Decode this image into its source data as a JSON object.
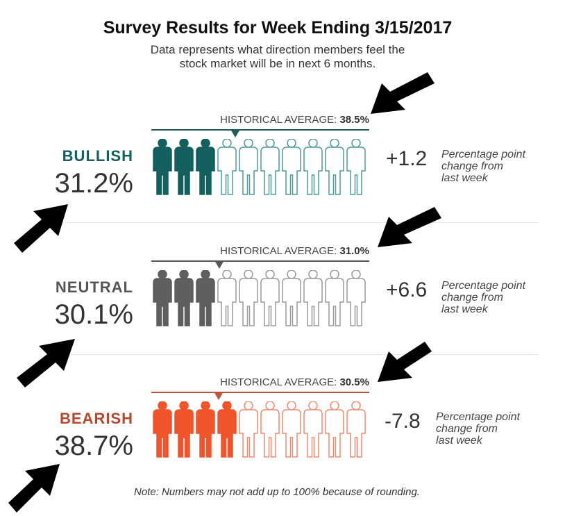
{
  "title": "Survey Results for Week Ending 3/15/2017",
  "subtitle_line1": "Data represents what direction members feel the",
  "subtitle_line2": "stock market will be in next 6 months.",
  "note": "Note: Numbers may not add up to 100% because of rounding.",
  "hist_prefix": "HISTORICAL AVERAGE: ",
  "chart_data": {
    "type": "pictogram",
    "title": "Survey Results for Week Ending 3/15/2017",
    "icons_per_row": 10,
    "categories": [
      {
        "name": "BULLISH",
        "value_label": "31.2%",
        "value": 31.2,
        "filled_icons": 3,
        "historical_average_label": "38.5%",
        "historical_average": 38.5,
        "change_label": "+1.2",
        "change": 1.2,
        "change_text_line1": "Percentage point",
        "change_text_line2": "change from",
        "change_text_line3": "last week",
        "color": "#14605f",
        "outline_color": "#4f9a9b",
        "line_color": "#1f5c5a"
      },
      {
        "name": "NEUTRAL",
        "value_label": "30.1%",
        "value": 30.1,
        "filled_icons": 3,
        "historical_average_label": "31.0%",
        "historical_average": 31.0,
        "change_label": "+6.6",
        "change": 6.6,
        "change_text_line1": "Percentage point",
        "change_text_line2": "change from",
        "change_text_line3": "last week",
        "color": "#5f5f5f",
        "outline_color": "#9a9a9a",
        "line_color": "#555555"
      },
      {
        "name": "BEARISH",
        "value_label": "38.7%",
        "value": 38.7,
        "filled_icons": 4,
        "historical_average_label": "30.5%",
        "historical_average": 30.5,
        "change_label": "-7.8",
        "change": -7.8,
        "change_text_line1": "Percentage point",
        "change_text_line2": "change from",
        "change_text_line3": "last week",
        "color": "#f0542a",
        "outline_color": "#f08a6e",
        "line_color": "#c0533a",
        "label_color": "#b7482e"
      }
    ]
  },
  "colors": {
    "arrow": "#000000",
    "bullish_label": "#14605f",
    "neutral_label": "#555555",
    "bearish_label": "#b7482e"
  }
}
